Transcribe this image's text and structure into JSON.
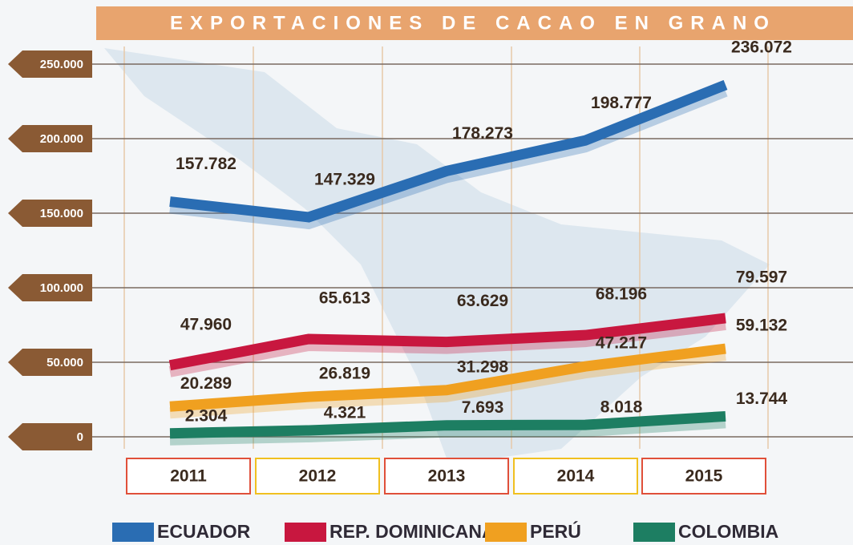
{
  "chart_data": {
    "type": "line",
    "title": "EXPORTACIONES DE CACAO EN GRANO",
    "categories": [
      "2011",
      "2012",
      "2013",
      "2014",
      "2015"
    ],
    "series": [
      {
        "name": "ECUADOR",
        "color": "#2a6db3",
        "values": [
          157782,
          147329,
          178273,
          198777,
          236072
        ],
        "value_labels": [
          "157.782",
          "147.329",
          "178.273",
          "198.777",
          "236.072"
        ]
      },
      {
        "name": "REP. DOMINICANA",
        "color": "#c8173f",
        "values": [
          47960,
          65613,
          63629,
          68196,
          79597
        ],
        "value_labels": [
          "47.960",
          "65.613",
          "63.629",
          "68.196",
          "79.597"
        ]
      },
      {
        "name": "PERÚ",
        "color": "#f0a020",
        "values": [
          20289,
          26819,
          31298,
          47217,
          59132
        ],
        "value_labels": [
          "20.289",
          "26.819",
          "31.298",
          "47.217",
          "59.132"
        ]
      },
      {
        "name": "COLOMBIA",
        "color": "#1d7e62",
        "values": [
          2304,
          4321,
          7693,
          8018,
          13744
        ],
        "value_labels": [
          "2.304",
          "4.321",
          "7.693",
          "8.018",
          "13.744"
        ]
      }
    ],
    "ylim": [
      0,
      250000
    ],
    "yticks": [
      0,
      {
        "value": 50000,
        "label": "50.000"
      },
      {
        "value": 100000,
        "label": "100.000"
      },
      {
        "value": 150000,
        "label": "150.000"
      },
      {
        "value": 200000,
        "label": "200.000"
      },
      {
        "value": 250000,
        "label": "250.000"
      }
    ],
    "grid": true
  }
}
